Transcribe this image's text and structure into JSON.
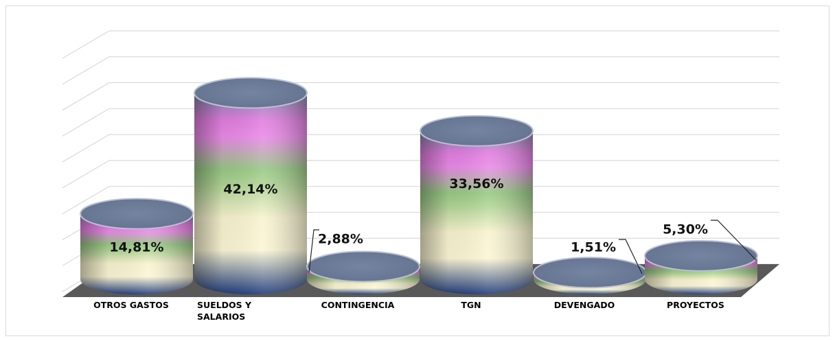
{
  "chart_data": {
    "type": "bar",
    "style": "3d-cylinder",
    "categories": [
      "OTROS GASTOS",
      "SUELDOS Y SALARIOS",
      "CONTINGENCIA",
      "TGN",
      "DEVENGADO",
      "PROYECTOS"
    ],
    "category_lines": [
      [
        "OTROS GASTOS"
      ],
      [
        "SUELDOS Y",
        "SALARIOS"
      ],
      [
        "CONTINGENCIA"
      ],
      [
        "TGN"
      ],
      [
        "DEVENGADO"
      ],
      [
        "PROYECTOS"
      ]
    ],
    "values": [
      14.81,
      42.14,
      2.88,
      33.56,
      1.51,
      5.3
    ],
    "data_labels": [
      "14,81%",
      "42,14%",
      "2,88%",
      "33,56%",
      "1,51%",
      "5,30%"
    ],
    "ylim": [
      0,
      45
    ],
    "grid": true,
    "legend": "none",
    "colors": {
      "gradient": [
        "#1f3b7a",
        "#fbf6d4",
        "#f8f3cf",
        "#aed493",
        "#98c985",
        "#ea8ae8",
        "#e27ee0",
        "#7c88a8"
      ],
      "top": "#6a7892",
      "floor": "#595959",
      "grid": "#d9d9d9"
    }
  }
}
